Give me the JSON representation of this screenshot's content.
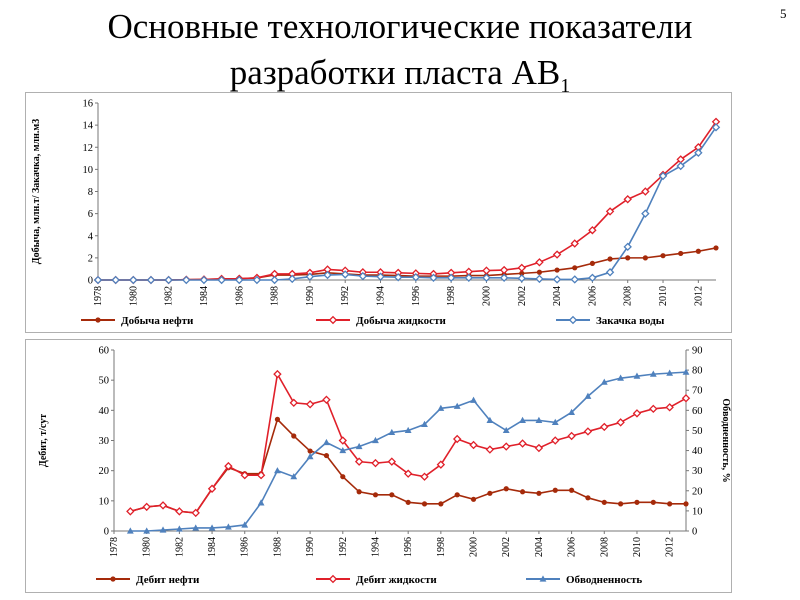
{
  "slide": {
    "title_line1": "Основные технологические показатели",
    "title_line2": "разработки пласта АВ",
    "title_sub": "1",
    "page_number": "5"
  },
  "chart_data": [
    {
      "type": "line",
      "years": [
        "1978",
        "1979",
        "1980",
        "1981",
        "1982",
        "1983",
        "1984",
        "1985",
        "1986",
        "1987",
        "1988",
        "1989",
        "1990",
        "1991",
        "1992",
        "1993",
        "1994",
        "1995",
        "1996",
        "1997",
        "1998",
        "1999",
        "2000",
        "2001",
        "2002",
        "2003",
        "2004",
        "2005",
        "2006",
        "2007",
        "2008",
        "2009",
        "2010",
        "2011",
        "2012",
        "2013"
      ],
      "tick_labels": [
        "1978",
        "1980",
        "1982",
        "1984",
        "1986",
        "1988",
        "1990",
        "1992",
        "1994",
        "1996",
        "1998",
        "2000",
        "2002",
        "2004",
        "2006",
        "2008",
        "2010",
        "2012"
      ],
      "ylabel": "Добыча, млн.т/ Закачка, млн.м3",
      "ylim": [
        0,
        16
      ],
      "yticks": [
        0,
        2,
        4,
        6,
        8,
        10,
        12,
        14,
        16
      ],
      "grid": false,
      "legend_position": "bottom",
      "series": [
        {
          "name": "Добыча нефти",
          "color": "#a52a0a",
          "marker": "circle",
          "values": [
            0,
            0,
            0,
            0,
            0,
            0.03,
            0.05,
            0.1,
            0.12,
            0.18,
            0.45,
            0.45,
            0.5,
            0.65,
            0.55,
            0.45,
            0.45,
            0.4,
            0.35,
            0.35,
            0.35,
            0.4,
            0.4,
            0.5,
            0.6,
            0.7,
            0.9,
            1.1,
            1.5,
            1.9,
            2.0,
            2.0,
            2.2,
            2.4,
            2.6,
            2.9
          ]
        },
        {
          "name": "Добыча жидкости",
          "color": "#e0202a",
          "marker": "diamond",
          "values": [
            0,
            0,
            0,
            0,
            0,
            0.03,
            0.05,
            0.1,
            0.12,
            0.2,
            0.55,
            0.55,
            0.65,
            0.95,
            0.85,
            0.7,
            0.7,
            0.65,
            0.6,
            0.55,
            0.65,
            0.75,
            0.85,
            0.9,
            1.1,
            1.6,
            2.3,
            3.3,
            4.5,
            6.2,
            7.3,
            8.0,
            9.5,
            10.9,
            12.0,
            14.3
          ]
        },
        {
          "name": "Закачка воды",
          "color": "#4f81bd",
          "marker": "diamond",
          "values": [
            0,
            0,
            0,
            0,
            0,
            0,
            0,
            0,
            0,
            0,
            0,
            0.1,
            0.3,
            0.45,
            0.5,
            0.35,
            0.3,
            0.25,
            0.25,
            0.2,
            0.2,
            0.2,
            0.2,
            0.2,
            0.15,
            0.1,
            0.05,
            0.05,
            0.2,
            0.7,
            3.0,
            6.0,
            9.4,
            10.3,
            11.5,
            13.8
          ]
        }
      ]
    },
    {
      "type": "line",
      "years": [
        "1978",
        "1979",
        "1980",
        "1981",
        "1982",
        "1983",
        "1984",
        "1985",
        "1986",
        "1987",
        "1988",
        "1989",
        "1990",
        "1991",
        "1992",
        "1993",
        "1994",
        "1995",
        "1996",
        "1997",
        "1998",
        "1999",
        "2000",
        "2001",
        "2002",
        "2003",
        "2004",
        "2005",
        "2006",
        "2007",
        "2008",
        "2009",
        "2010",
        "2011",
        "2012",
        "2013"
      ],
      "tick_labels": [
        "1978",
        "1980",
        "1982",
        "1984",
        "1986",
        "1988",
        "1990",
        "1992",
        "1994",
        "1996",
        "1998",
        "2000",
        "2002",
        "2004",
        "2006",
        "2008",
        "2010",
        "2012"
      ],
      "ylabel_left": "Дебит, т/сут",
      "ylabel_right": "Обводненность, %",
      "ylim_left": [
        0,
        60
      ],
      "yticks_left": [
        0,
        10,
        20,
        30,
        40,
        50,
        60
      ],
      "ylim_right": [
        0,
        90
      ],
      "yticks_right": [
        0,
        10,
        20,
        30,
        40,
        50,
        60,
        70,
        80,
        90
      ],
      "grid": false,
      "legend_position": "bottom",
      "series": [
        {
          "name": "Дебит нефти",
          "color": "#a52a0a",
          "marker": "circle",
          "axis": "left",
          "values": [
            null,
            6.5,
            8,
            8.5,
            6.5,
            6,
            14,
            21,
            19,
            19,
            37,
            31.5,
            26.5,
            25,
            18,
            13,
            12,
            12,
            9.5,
            9,
            9,
            12,
            10.5,
            12.5,
            14,
            13,
            12.5,
            13.5,
            13.5,
            11,
            9.5,
            9,
            9.5,
            9.5,
            9,
            9
          ]
        },
        {
          "name": "Дебит жидкости",
          "color": "#e0202a",
          "marker": "diamond",
          "axis": "left",
          "values": [
            null,
            6.5,
            8,
            8.5,
            6.5,
            6,
            14,
            21.5,
            18.5,
            18.5,
            52,
            42.5,
            42,
            43.5,
            30,
            23,
            22.5,
            23,
            19,
            18,
            22,
            30.5,
            28.5,
            27,
            28,
            29,
            27.5,
            30,
            31.5,
            33,
            34.5,
            36,
            39,
            40.5,
            41,
            44
          ]
        },
        {
          "name": "Обводненность",
          "color": "#4f81bd",
          "marker": "triangle",
          "axis": "right",
          "values": [
            null,
            0,
            0,
            0.5,
            1,
            1.5,
            1.5,
            2,
            3,
            14,
            30,
            27,
            37,
            44,
            40,
            42,
            45,
            49,
            50,
            53,
            61,
            62,
            65,
            55,
            50,
            55,
            55,
            54,
            59,
            67,
            74,
            76,
            77,
            78,
            78.5,
            79
          ]
        }
      ]
    }
  ]
}
